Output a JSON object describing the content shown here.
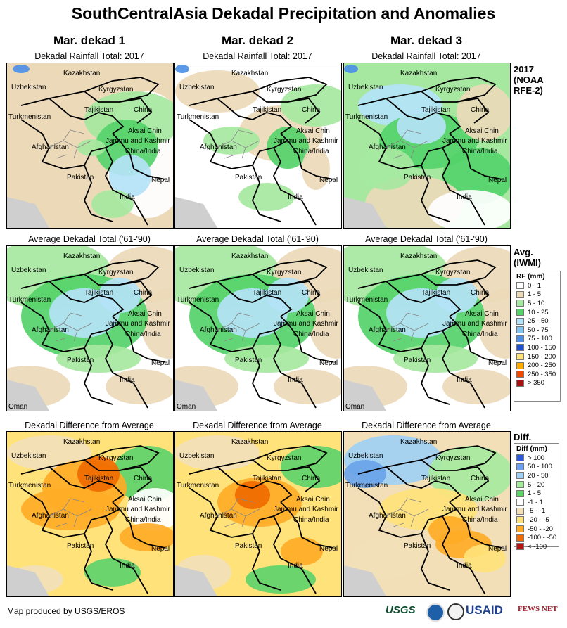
{
  "title": "SouthCentralAsia Dekadal Precipitation and Anomalies",
  "columns": [
    "Mar. dekad 1",
    "Mar. dekad 2",
    "Mar. dekad 3"
  ],
  "rows": [
    {
      "panel_title": "Dekadal Rainfall Total: 2017",
      "row_label": [
        "2017",
        "(NOAA",
        "RFE-2)"
      ]
    },
    {
      "panel_title": "Average Dekadal Total ('61-'90)",
      "row_label": [
        "Avg.",
        "(IWMI)"
      ]
    },
    {
      "panel_title": "Dekadal Difference from Average",
      "row_label": [
        "Diff."
      ]
    }
  ],
  "map_labels": {
    "kazakhstan": "Kazakhstan",
    "uzbekistan": "Uzbekistan",
    "kyrgyzstan": "Kyrgyzstan",
    "turkmenistan": "Turkmenistan",
    "tajikistan": "Tajikistan",
    "china": "China",
    "aksai_chin": "Aksai Chin",
    "jammu_kashmir": "Jammu and Kashmir",
    "china_india": "China/India",
    "afghanistan": "Afghanistan",
    "pakistan": "Pakistan",
    "nepal": "Nepal",
    "india": "India",
    "oman": "Oman"
  },
  "legend_rf": {
    "title": "RF (mm)",
    "items": [
      {
        "label": "0 - 1",
        "color": "#ffffff"
      },
      {
        "label": "1 - 5",
        "color": "#ecd9b8"
      },
      {
        "label": "5 - 10",
        "color": "#a6e8a0"
      },
      {
        "label": "10 - 25",
        "color": "#55d36a"
      },
      {
        "label": "25 - 50",
        "color": "#b4e3f7"
      },
      {
        "label": "50 - 75",
        "color": "#82c4f0"
      },
      {
        "label": "75 - 100",
        "color": "#4d8fe6"
      },
      {
        "label": "100 - 150",
        "color": "#1f4fcf"
      },
      {
        "label": "150 - 200",
        "color": "#ffe47a"
      },
      {
        "label": "200 - 250",
        "color": "#ffaa00"
      },
      {
        "label": "250 - 350",
        "color": "#f04a00"
      },
      {
        "label": "> 350",
        "color": "#a51212"
      }
    ]
  },
  "legend_diff": {
    "title": "Diff (mm)",
    "items": [
      {
        "label": "> 100",
        "color": "#2a5ad8"
      },
      {
        "label": "50 - 100",
        "color": "#6aa3ea"
      },
      {
        "label": "20 - 50",
        "color": "#9fd0f4"
      },
      {
        "label": "5 - 20",
        "color": "#a8e9a0"
      },
      {
        "label": "1 - 5",
        "color": "#5fd36a"
      },
      {
        "label": "-1 - 1",
        "color": "#ffffff"
      },
      {
        "label": "-5 - -1",
        "color": "#f2dfb8"
      },
      {
        "label": "-20 - -5",
        "color": "#ffe27a"
      },
      {
        "label": "-50 - -20",
        "color": "#ffab26"
      },
      {
        "label": "-100 - -50",
        "color": "#f06a00"
      },
      {
        "label": "< -100",
        "color": "#b41414"
      }
    ]
  },
  "footer": "Map produced by USGS/EROS",
  "logos": {
    "usgs": "USGS",
    "usaid": "USAID",
    "fews": "FEWS NET"
  }
}
